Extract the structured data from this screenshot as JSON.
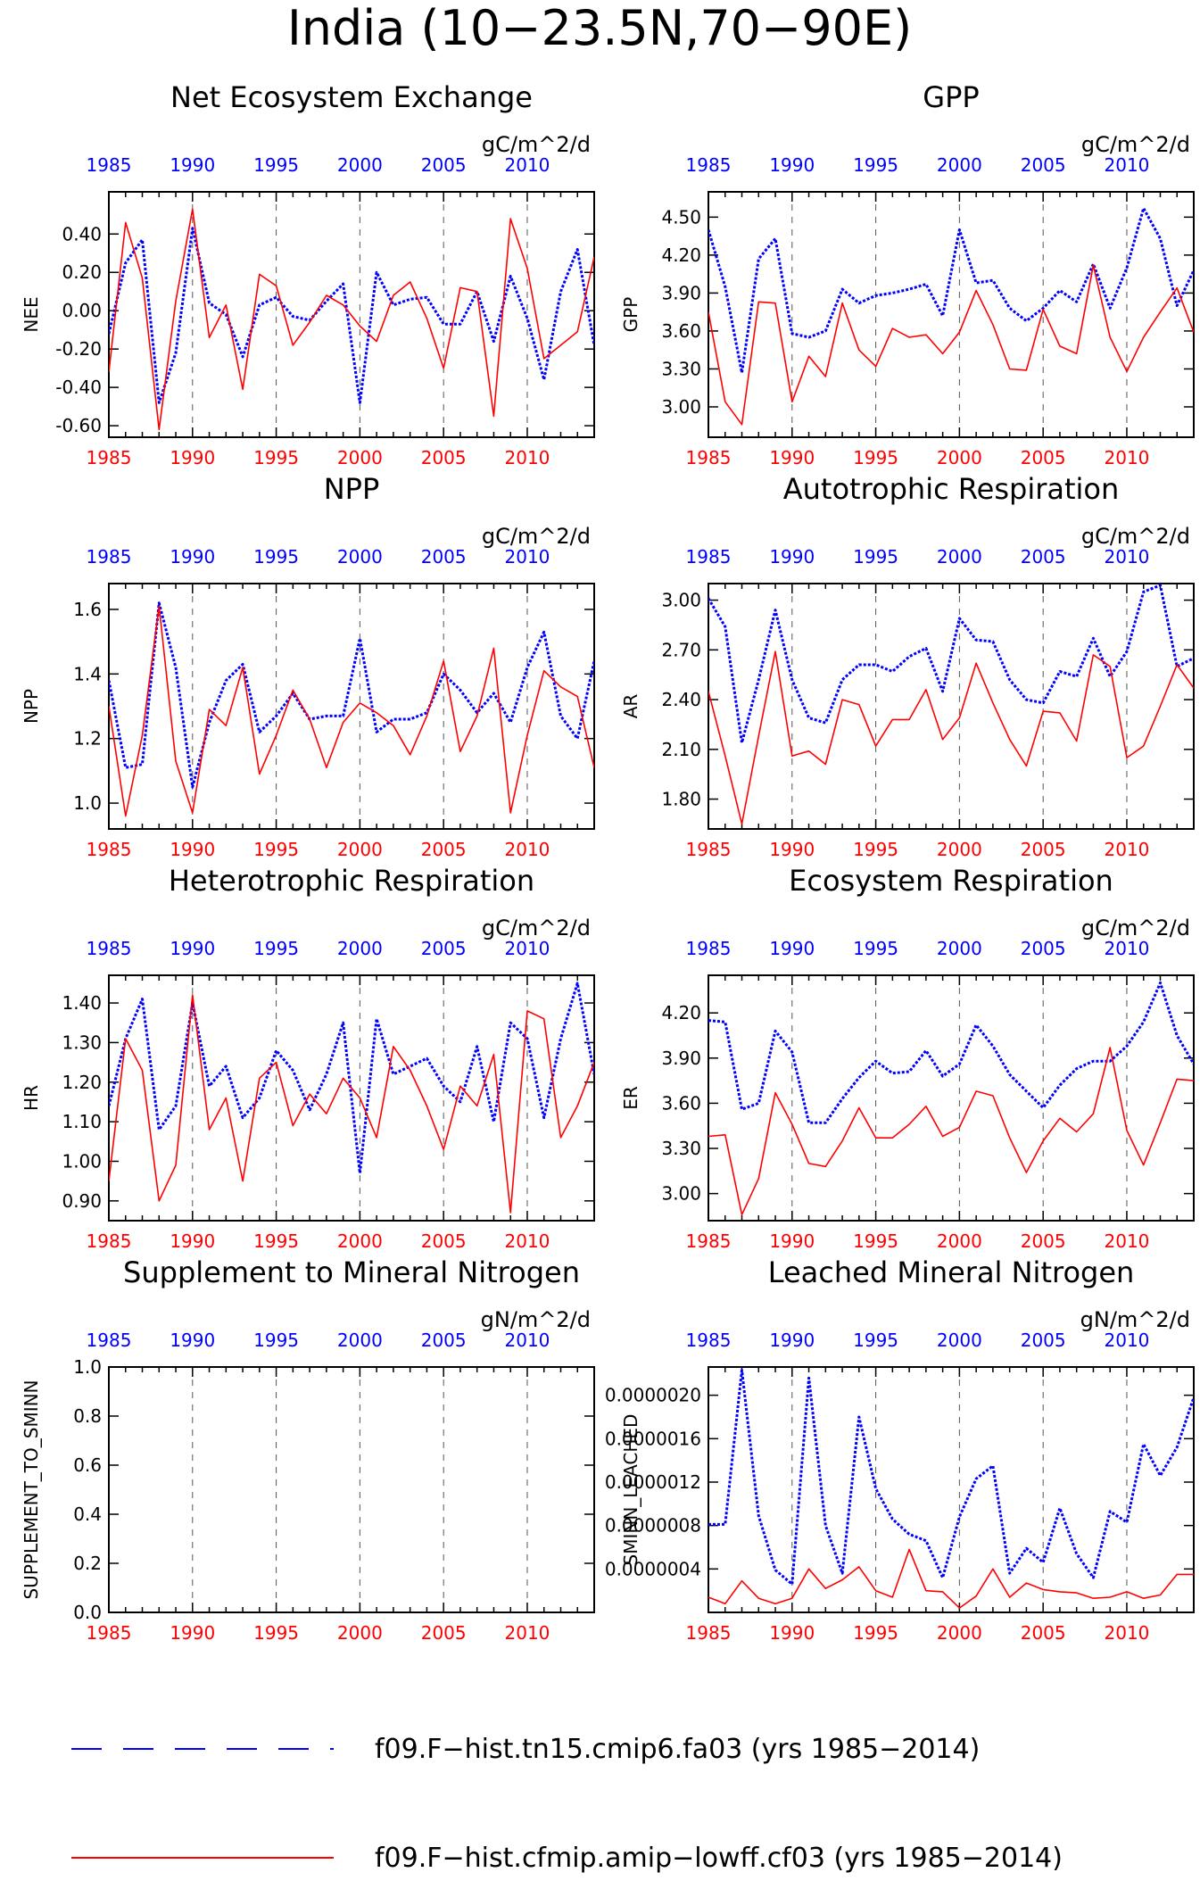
{
  "page": {
    "title": "India (10−23.5N,70−90E)",
    "colors": {
      "blue": "#0000ff",
      "red": "#ff0000",
      "axis": "#000000"
    }
  },
  "legend": {
    "items": [
      {
        "label": "f09.F−hist.tn15.cmip6.fa03 (yrs 1985−2014)",
        "color": "#0000ff",
        "style": "dashed"
      },
      {
        "label": "f09.F−hist.cfmip.amip−lowff.cf03 (yrs 1985−2014)",
        "color": "#ff0000",
        "style": "solid"
      }
    ]
  },
  "chart_data": [
    {
      "type": "line",
      "title": "Net Ecosystem Exchange",
      "ylabel": "NEE",
      "units": "gC/m^2/d",
      "xlim": [
        1985,
        2014
      ],
      "ylim": [
        -0.66,
        0.62
      ],
      "xticks": [
        1985,
        1990,
        1995,
        2000,
        2005,
        2010
      ],
      "ytick_labels": [
        "-0.60",
        "-0.40",
        "-0.20",
        "0.00",
        "0.20",
        "0.40"
      ],
      "grid_vertical": true,
      "x": [
        1985,
        1986,
        1987,
        1988,
        1989,
        1990,
        1991,
        1992,
        1993,
        1994,
        1995,
        1996,
        1997,
        1998,
        1999,
        2000,
        2001,
        2002,
        2003,
        2004,
        2005,
        2006,
        2007,
        2008,
        2009,
        2010,
        2011,
        2012,
        2013,
        2014
      ],
      "series": [
        {
          "color": "#0000ff",
          "style": "dotted",
          "values": [
            -0.12,
            0.25,
            0.37,
            -0.48,
            -0.22,
            0.43,
            0.04,
            -0.02,
            -0.24,
            0.03,
            0.07,
            -0.03,
            -0.05,
            0.05,
            0.14,
            -0.48,
            0.2,
            0.03,
            0.06,
            0.07,
            -0.07,
            -0.07,
            0.1,
            -0.16,
            0.18,
            -0.04,
            -0.36,
            0.1,
            0.32,
            -0.18
          ]
        },
        {
          "color": "#ff0000",
          "style": "solid",
          "values": [
            -0.32,
            0.46,
            0.17,
            -0.62,
            0.05,
            0.53,
            -0.14,
            0.03,
            -0.41,
            0.19,
            0.13,
            -0.18,
            -0.06,
            0.08,
            0.03,
            -0.08,
            -0.16,
            0.08,
            0.15,
            -0.04,
            -0.3,
            0.12,
            0.1,
            -0.55,
            0.48,
            0.22,
            -0.25,
            -0.18,
            -0.11,
            0.28
          ]
        }
      ]
    },
    {
      "type": "line",
      "title": "GPP",
      "ylabel": "GPP",
      "units": "gC/m^2/d",
      "xlim": [
        1985,
        2014
      ],
      "ylim": [
        2.76,
        4.7
      ],
      "xticks": [
        1985,
        1990,
        1995,
        2000,
        2005,
        2010
      ],
      "ytick_labels": [
        "3.00",
        "3.30",
        "3.60",
        "3.90",
        "4.20",
        "4.50"
      ],
      "grid_vertical": true,
      "x": [
        1985,
        1986,
        1987,
        1988,
        1989,
        1990,
        1991,
        1992,
        1993,
        1994,
        1995,
        1996,
        1997,
        1998,
        1999,
        2000,
        2001,
        2002,
        2003,
        2004,
        2005,
        2006,
        2007,
        2008,
        2009,
        2010,
        2011,
        2012,
        2013,
        2014
      ],
      "series": [
        {
          "color": "#0000ff",
          "style": "dotted",
          "values": [
            4.4,
            3.95,
            3.27,
            4.17,
            4.33,
            3.58,
            3.55,
            3.6,
            3.93,
            3.82,
            3.88,
            3.9,
            3.93,
            3.97,
            3.72,
            4.4,
            3.98,
            4.0,
            3.78,
            3.68,
            3.78,
            3.92,
            3.83,
            4.13,
            3.78,
            4.1,
            4.57,
            4.33,
            3.8,
            4.08
          ]
        },
        {
          "color": "#ff0000",
          "style": "solid",
          "values": [
            3.75,
            3.04,
            2.86,
            3.83,
            3.82,
            3.04,
            3.4,
            3.24,
            3.82,
            3.45,
            3.32,
            3.62,
            3.55,
            3.57,
            3.42,
            3.59,
            3.92,
            3.65,
            3.3,
            3.29,
            3.77,
            3.48,
            3.42,
            4.12,
            3.55,
            3.28,
            3.55,
            3.75,
            3.94,
            3.59
          ]
        }
      ]
    },
    {
      "type": "line",
      "title": "NPP",
      "ylabel": "NPP",
      "units": "gC/m^2/d",
      "xlim": [
        1985,
        2014
      ],
      "ylim": [
        0.92,
        1.68
      ],
      "xticks": [
        1985,
        1990,
        1995,
        2000,
        2005,
        2010
      ],
      "ytick_labels": [
        "1.0",
        "1.2",
        "1.4",
        "1.6"
      ],
      "grid_vertical": true,
      "x": [
        1985,
        1986,
        1987,
        1988,
        1989,
        1990,
        1991,
        1992,
        1993,
        1994,
        1995,
        1996,
        1997,
        1998,
        1999,
        2000,
        2001,
        2002,
        2003,
        2004,
        2005,
        2006,
        2007,
        2008,
        2009,
        2010,
        2011,
        2012,
        2013,
        2014
      ],
      "series": [
        {
          "color": "#0000ff",
          "style": "dotted",
          "values": [
            1.38,
            1.11,
            1.12,
            1.62,
            1.42,
            1.05,
            1.25,
            1.38,
            1.43,
            1.22,
            1.27,
            1.34,
            1.26,
            1.27,
            1.27,
            1.51,
            1.22,
            1.26,
            1.26,
            1.28,
            1.4,
            1.35,
            1.28,
            1.34,
            1.25,
            1.42,
            1.53,
            1.27,
            1.2,
            1.44
          ]
        },
        {
          "color": "#ff0000",
          "style": "solid",
          "values": [
            1.3,
            0.96,
            1.21,
            1.61,
            1.13,
            0.97,
            1.29,
            1.24,
            1.42,
            1.09,
            1.21,
            1.35,
            1.26,
            1.11,
            1.25,
            1.31,
            1.28,
            1.24,
            1.15,
            1.27,
            1.44,
            1.16,
            1.27,
            1.48,
            0.97,
            1.21,
            1.41,
            1.36,
            1.33,
            1.11
          ]
        }
      ]
    },
    {
      "type": "line",
      "title": "Autotrophic Respiration",
      "ylabel": "AR",
      "units": "gC/m^2/d",
      "xlim": [
        1985,
        2014
      ],
      "ylim": [
        1.62,
        3.1
      ],
      "xticks": [
        1985,
        1990,
        1995,
        2000,
        2005,
        2010
      ],
      "ytick_labels": [
        "1.80",
        "2.10",
        "2.40",
        "2.70",
        "3.00"
      ],
      "grid_vertical": true,
      "x": [
        1985,
        1986,
        1987,
        1988,
        1989,
        1990,
        1991,
        1992,
        1993,
        1994,
        1995,
        1996,
        1997,
        1998,
        1999,
        2000,
        2001,
        2002,
        2003,
        2004,
        2005,
        2006,
        2007,
        2008,
        2009,
        2010,
        2011,
        2012,
        2013,
        2014
      ],
      "series": [
        {
          "color": "#0000ff",
          "style": "dotted",
          "values": [
            3.01,
            2.84,
            2.14,
            2.52,
            2.94,
            2.52,
            2.29,
            2.26,
            2.52,
            2.61,
            2.61,
            2.57,
            2.66,
            2.71,
            2.45,
            2.89,
            2.76,
            2.75,
            2.52,
            2.4,
            2.38,
            2.57,
            2.54,
            2.77,
            2.54,
            2.69,
            3.05,
            3.09,
            2.6,
            2.65
          ]
        },
        {
          "color": "#ff0000",
          "style": "solid",
          "values": [
            2.45,
            2.06,
            1.65,
            2.18,
            2.69,
            2.06,
            2.09,
            2.01,
            2.4,
            2.37,
            2.12,
            2.28,
            2.28,
            2.46,
            2.16,
            2.29,
            2.62,
            2.38,
            2.16,
            2.0,
            2.33,
            2.32,
            2.15,
            2.67,
            2.6,
            2.05,
            2.12,
            2.36,
            2.61,
            2.47
          ]
        }
      ]
    },
    {
      "type": "line",
      "title": "Heterotrophic Respiration",
      "ylabel": "HR",
      "units": "gC/m^2/d",
      "xlim": [
        1985,
        2014
      ],
      "ylim": [
        0.85,
        1.47
      ],
      "xticks": [
        1985,
        1990,
        1995,
        2000,
        2005,
        2010
      ],
      "ytick_labels": [
        "0.90",
        "1.00",
        "1.10",
        "1.20",
        "1.30",
        "1.40"
      ],
      "grid_vertical": true,
      "x": [
        1985,
        1986,
        1987,
        1988,
        1989,
        1990,
        1991,
        1992,
        1993,
        1994,
        1995,
        1996,
        1997,
        1998,
        1999,
        2000,
        2001,
        2002,
        2003,
        2004,
        2005,
        2006,
        2007,
        2008,
        2009,
        2010,
        2011,
        2012,
        2013,
        2014
      ],
      "series": [
        {
          "color": "#0000ff",
          "style": "dotted",
          "values": [
            1.14,
            1.31,
            1.41,
            1.08,
            1.14,
            1.4,
            1.19,
            1.24,
            1.11,
            1.16,
            1.28,
            1.23,
            1.13,
            1.22,
            1.35,
            0.97,
            1.36,
            1.22,
            1.24,
            1.26,
            1.19,
            1.15,
            1.29,
            1.1,
            1.35,
            1.31,
            1.11,
            1.31,
            1.45,
            1.22
          ]
        },
        {
          "color": "#ff0000",
          "style": "solid",
          "values": [
            0.95,
            1.31,
            1.23,
            0.9,
            0.99,
            1.42,
            1.08,
            1.16,
            0.95,
            1.21,
            1.25,
            1.09,
            1.17,
            1.12,
            1.21,
            1.16,
            1.06,
            1.29,
            1.23,
            1.14,
            1.03,
            1.19,
            1.14,
            1.27,
            0.87,
            1.38,
            1.36,
            1.06,
            1.14,
            1.25
          ]
        }
      ]
    },
    {
      "type": "line",
      "title": "Ecosystem Respiration",
      "ylabel": "ER",
      "units": "gC/m^2/d",
      "xlim": [
        1985,
        2014
      ],
      "ylim": [
        2.82,
        4.45
      ],
      "xticks": [
        1985,
        1990,
        1995,
        2000,
        2005,
        2010
      ],
      "ytick_labels": [
        "3.00",
        "3.30",
        "3.60",
        "3.90",
        "4.20"
      ],
      "grid_vertical": true,
      "x": [
        1985,
        1986,
        1987,
        1988,
        1989,
        1990,
        1991,
        1992,
        1993,
        1994,
        1995,
        1996,
        1997,
        1998,
        1999,
        2000,
        2001,
        2002,
        2003,
        2004,
        2005,
        2006,
        2007,
        2008,
        2009,
        2010,
        2011,
        2012,
        2013,
        2014
      ],
      "series": [
        {
          "color": "#0000ff",
          "style": "dotted",
          "values": [
            4.15,
            4.14,
            3.56,
            3.6,
            4.08,
            3.94,
            3.47,
            3.47,
            3.63,
            3.77,
            3.88,
            3.8,
            3.81,
            3.95,
            3.78,
            3.86,
            4.12,
            3.98,
            3.79,
            3.68,
            3.57,
            3.72,
            3.83,
            3.88,
            3.88,
            3.98,
            4.14,
            4.4,
            4.05,
            3.86
          ]
        },
        {
          "color": "#ff0000",
          "style": "solid",
          "values": [
            3.38,
            3.39,
            2.86,
            3.1,
            3.67,
            3.46,
            3.2,
            3.18,
            3.35,
            3.57,
            3.37,
            3.37,
            3.46,
            3.58,
            3.38,
            3.44,
            3.68,
            3.65,
            3.37,
            3.14,
            3.35,
            3.5,
            3.41,
            3.53,
            3.97,
            3.42,
            3.19,
            3.47,
            3.76,
            3.75
          ]
        }
      ]
    },
    {
      "type": "line",
      "title": "Supplement to Mineral Nitrogen",
      "ylabel": "SUPPLEMENT_TO_SMINN",
      "units": "gN/m^2/d",
      "xlim": [
        1985,
        2014
      ],
      "ylim": [
        0.0,
        1.0
      ],
      "xticks": [
        1985,
        1990,
        1995,
        2000,
        2005,
        2010
      ],
      "ytick_labels": [
        "0.0",
        "0.2",
        "0.4",
        "0.6",
        "0.8",
        "1.0"
      ],
      "grid_vertical": true,
      "x": [],
      "series": []
    },
    {
      "type": "line",
      "title": "Leached Mineral Nitrogen",
      "ylabel": "SMINN_LEACHED",
      "units": "gN/m^2/d",
      "xlim": [
        1985,
        2014
      ],
      "ylim": [
        0.0,
        2.26e-06
      ],
      "xticks": [
        1985,
        1990,
        1995,
        2000,
        2005,
        2010
      ],
      "ytick_labels": [
        "0.0000004",
        "0.0000008",
        "0.0000012",
        "0.0000016",
        "0.0000020"
      ],
      "grid_vertical": true,
      "x": [
        1985,
        1986,
        1987,
        1988,
        1989,
        1990,
        1991,
        1992,
        1993,
        1994,
        1995,
        1996,
        1997,
        1998,
        1999,
        2000,
        2001,
        2002,
        2003,
        2004,
        2005,
        2006,
        2007,
        2008,
        2009,
        2010,
        2011,
        2012,
        2013,
        2014
      ],
      "series": [
        {
          "color": "#0000ff",
          "style": "dotted",
          "values": [
            8.1e-07,
            8.1e-07,
            2.23e-06,
            8.9e-07,
            3.9e-07,
            2.6e-07,
            2.16e-06,
            8e-07,
            3.6e-07,
            1.8e-06,
            1.14e-06,
            8.6e-07,
            7.2e-07,
            6.6e-07,
            3.2e-07,
            8.8e-07,
            1.23e-06,
            1.35e-06,
            3.6e-07,
            5.9e-07,
            4.6e-07,
            9.6e-07,
            5.4e-07,
            3.2e-07,
            9.3e-07,
            8.3e-07,
            1.55e-06,
            1.26e-06,
            1.52e-06,
            1.98e-06
          ]
        },
        {
          "color": "#ff0000",
          "style": "solid",
          "values": [
            1.4e-07,
            8e-08,
            2.9e-07,
            1.3e-07,
            8e-08,
            1.3e-07,
            4e-07,
            2.2e-07,
            3e-07,
            4.2e-07,
            2e-07,
            1.4e-07,
            5.8e-07,
            2e-07,
            1.9e-07,
            4e-08,
            1.5e-07,
            4e-07,
            1.4e-07,
            2.7e-07,
            2.1e-07,
            1.9e-07,
            1.8e-07,
            1.3e-07,
            1.4e-07,
            1.9e-07,
            1.3e-07,
            1.6e-07,
            3.5e-07,
            3.5e-07
          ]
        }
      ]
    }
  ]
}
